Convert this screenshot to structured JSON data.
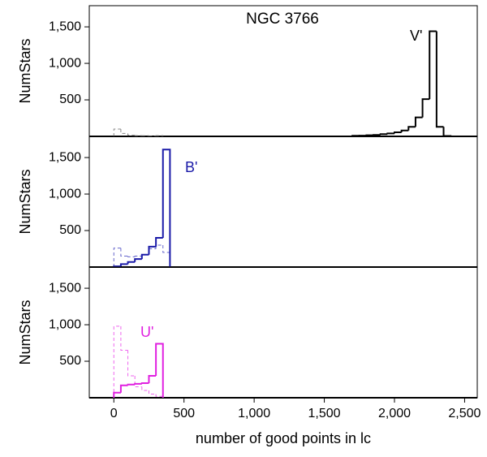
{
  "chart_data": [
    {
      "type": "histogram",
      "title": "NGC 3766",
      "ylabel": "NumStars",
      "xlim": [
        -175,
        2590
      ],
      "ylim": [
        0,
        1790
      ],
      "yticks": [
        500,
        {
          "value": 1000,
          "label": "1,000"
        },
        {
          "value": 1500,
          "label": "1,500"
        }
      ],
      "series": [
        {
          "name": "V'",
          "color": "#000000",
          "style": "solid",
          "bins": [
            1700,
            1750,
            1800,
            1850,
            1900,
            1950,
            2000,
            2050,
            2100,
            2150,
            2200,
            2250,
            2300,
            2350,
            2400
          ],
          "values": [
            8,
            10,
            15,
            20,
            30,
            40,
            55,
            80,
            130,
            260,
            510,
            1440,
            130,
            5
          ]
        },
        {
          "color": "#888888",
          "style": "dashed",
          "bins": [
            0,
            50,
            100,
            150,
            200,
            250,
            300,
            350
          ],
          "values": [
            100,
            40,
            15,
            10,
            8,
            5,
            10
          ]
        }
      ]
    },
    {
      "type": "histogram",
      "ylabel": "NumStars",
      "xlim": [
        -175,
        2590
      ],
      "ylim": [
        0,
        1790
      ],
      "yticks": [
        500,
        {
          "value": 1000,
          "label": "1,000"
        },
        {
          "value": 1500,
          "label": "1,500"
        }
      ],
      "series": [
        {
          "name": "B'",
          "color": "#1a1aa8",
          "style": "solid",
          "bins": [
            0,
            50,
            100,
            150,
            200,
            250,
            300,
            350,
            400
          ],
          "values": [
            10,
            40,
            70,
            110,
            170,
            280,
            400,
            1610
          ]
        },
        {
          "color": "#6666cc",
          "style": "dashed",
          "bins": [
            0,
            50,
            100,
            150,
            200,
            250,
            300,
            350,
            400
          ],
          "values": [
            260,
            150,
            140,
            150,
            170,
            250,
            300,
            200
          ]
        }
      ]
    },
    {
      "type": "histogram",
      "ylabel": "NumStars",
      "xlabel": "number of good points in lc",
      "xlim": [
        -175,
        2590
      ],
      "ylim": [
        0,
        1790
      ],
      "yticks": [
        500,
        {
          "value": 1000,
          "label": "1,000"
        },
        {
          "value": 1500,
          "label": "1,500"
        }
      ],
      "xticks": [
        0,
        500,
        {
          "value": 1000,
          "label": "1,000"
        },
        {
          "value": 1500,
          "label": "1,500"
        },
        {
          "value": 2000,
          "label": "2,000"
        },
        {
          "value": 2500,
          "label": "2,500"
        }
      ],
      "series": [
        {
          "name": "U'",
          "color": "#e020e0",
          "style": "solid",
          "bins": [
            0,
            50,
            100,
            150,
            200,
            250,
            300,
            350
          ],
          "values": [
            70,
            170,
            180,
            190,
            200,
            300,
            740
          ]
        },
        {
          "color": "#ee66ee",
          "style": "dashed",
          "bins": [
            0,
            50,
            100,
            150,
            200,
            250,
            300,
            350
          ],
          "values": [
            980,
            650,
            300,
            150,
            100,
            50,
            20
          ]
        }
      ]
    }
  ]
}
